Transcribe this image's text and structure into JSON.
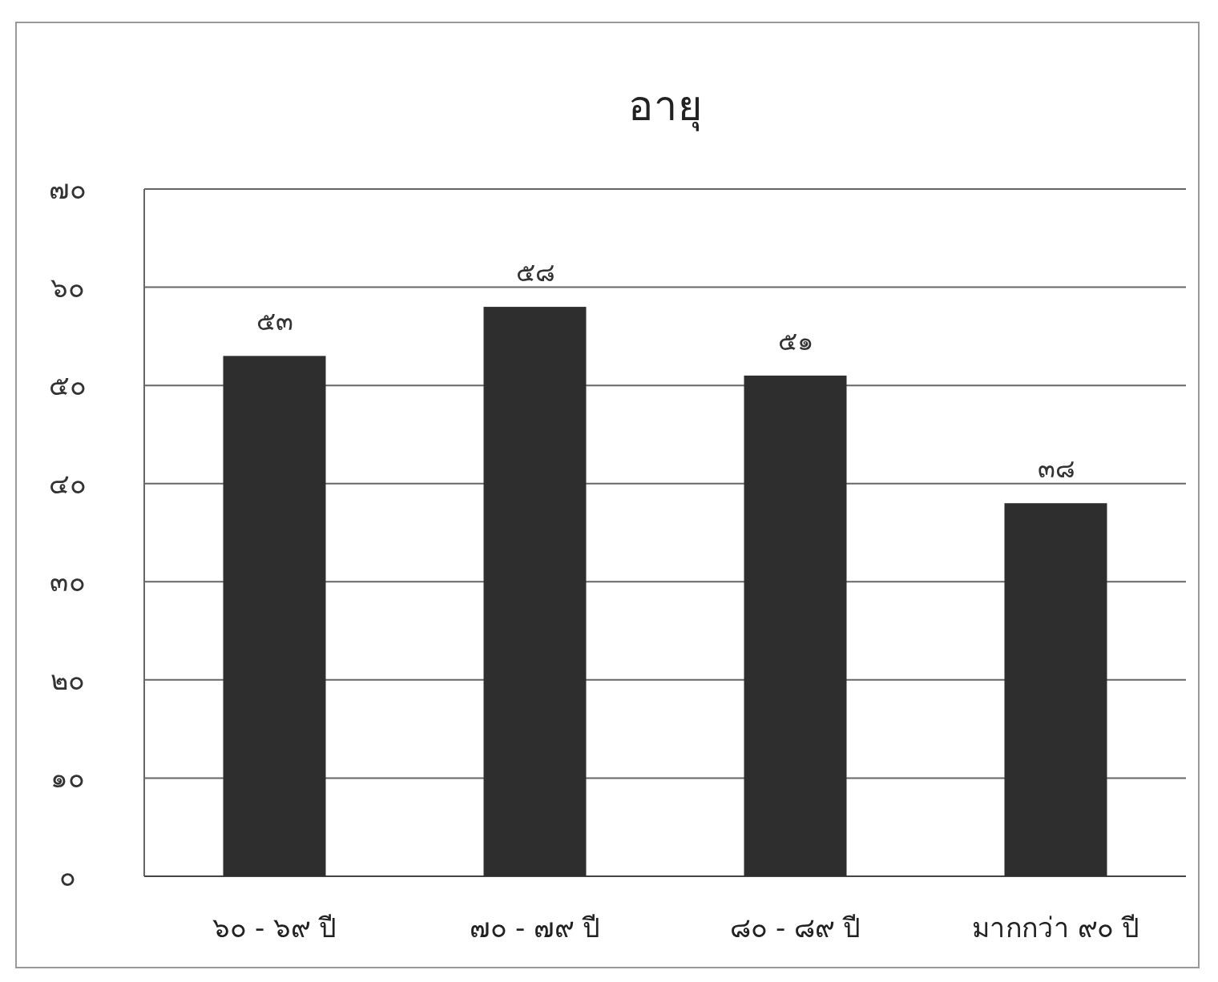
{
  "chart_data": {
    "type": "bar",
    "title": "อายุ",
    "categories": [
      "๖๐ - ๖๙ ปี",
      "๗๐ - ๗๙ ปี",
      "๘๐ - ๘๙ ปี",
      "มากกว่า ๙๐ ปี"
    ],
    "values": [
      53,
      58,
      51,
      38
    ],
    "value_labels": [
      "๕๓",
      "๕๘",
      "๕๑",
      "๓๘"
    ],
    "color": "#2e2e2e",
    "ylim": [
      0,
      70
    ],
    "yticks": [
      {
        "value": 0,
        "label": "๐"
      },
      {
        "value": 10,
        "label": "๑๐"
      },
      {
        "value": 20,
        "label": "๒๐"
      },
      {
        "value": 30,
        "label": "๓๐"
      },
      {
        "value": 40,
        "label": "๔๐"
      },
      {
        "value": 50,
        "label": "๕๐"
      },
      {
        "value": 60,
        "label": "๖๐"
      },
      {
        "value": 70,
        "label": "๗๐"
      }
    ],
    "grid": "y"
  }
}
